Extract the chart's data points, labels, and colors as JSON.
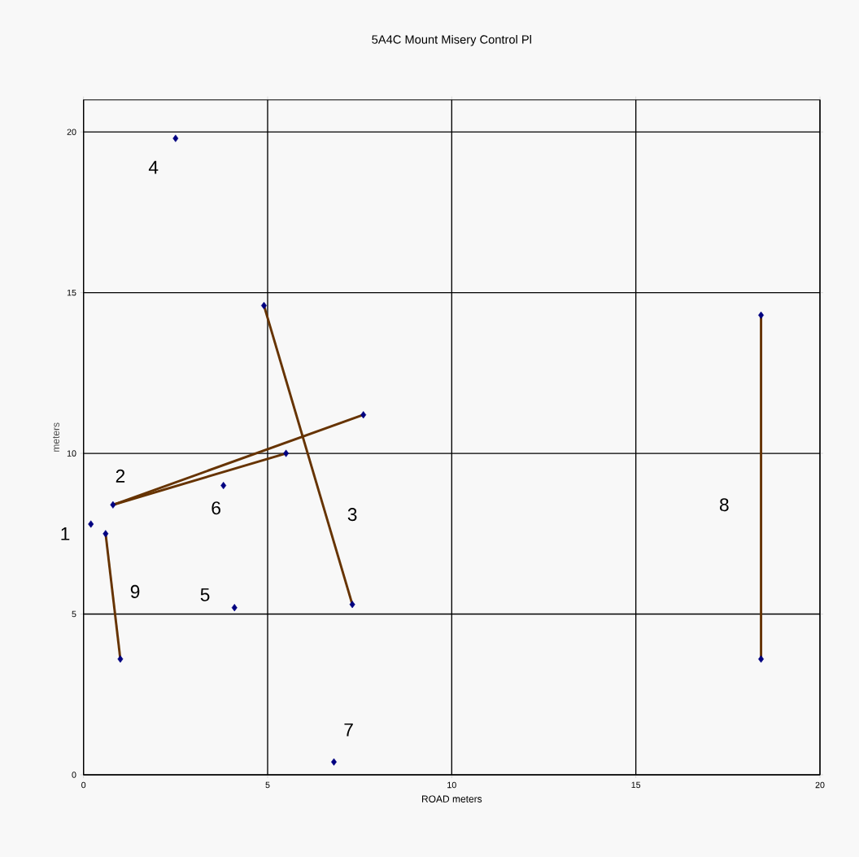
{
  "chart_data": {
    "type": "scatter",
    "title": "5A4C Mount Misery Control Pl",
    "xlabel": "ROAD meters",
    "ylabel": "meters",
    "xlim": [
      0,
      20
    ],
    "ylim": [
      0,
      21
    ],
    "xticks": [
      0,
      5,
      10,
      15,
      20
    ],
    "yticks": [
      0,
      5,
      10,
      15,
      20
    ],
    "grid": true,
    "series": [
      {
        "type": "line",
        "color": "#663300",
        "x": [
          0.6,
          1.0
        ],
        "values": [
          7.5,
          3.6
        ]
      },
      {
        "type": "line",
        "color": "#663300",
        "x": [
          0.8,
          7.6
        ],
        "values": [
          8.4,
          11.2
        ]
      },
      {
        "type": "line",
        "color": "#663300",
        "x": [
          0.8,
          5.5
        ],
        "values": [
          8.4,
          10.0
        ]
      },
      {
        "type": "line",
        "color": "#663300",
        "x": [
          4.9,
          7.3
        ],
        "values": [
          14.6,
          5.3
        ]
      },
      {
        "type": "line",
        "color": "#663300",
        "x": [
          18.4,
          18.4
        ],
        "values": [
          14.3,
          3.6
        ]
      },
      {
        "color": "#000080",
        "marker": "diamond",
        "x": [
          0.2,
          0.6,
          1.0,
          0.8,
          7.6,
          5.5,
          4.9,
          7.3,
          2.5,
          4.1,
          3.8,
          6.8,
          18.4,
          18.4
        ],
        "values": [
          7.8,
          7.5,
          3.6,
          8.4,
          11.2,
          10.0,
          14.6,
          5.3,
          19.8,
          5.2,
          9.0,
          0.4,
          14.3,
          3.6
        ]
      }
    ],
    "annotations": [
      {
        "text": "1",
        "x": 0.2,
        "y": 7.8
      },
      {
        "text": "2",
        "x": 0.8,
        "y": 8.4
      },
      {
        "text": "3",
        "x": 6.6,
        "y": 8.1
      },
      {
        "text": "4",
        "x": 2.5,
        "y": 19.8
      },
      {
        "text": "5",
        "x": 4.1,
        "y": 5.2
      },
      {
        "text": "6",
        "x": 3.8,
        "y": 9.0
      },
      {
        "text": "7",
        "x": 6.8,
        "y": 0.4
      },
      {
        "text": "8",
        "x": 18.4,
        "y": 8.4
      },
      {
        "text": "9",
        "x": 0.8,
        "y": 5.7
      }
    ]
  }
}
